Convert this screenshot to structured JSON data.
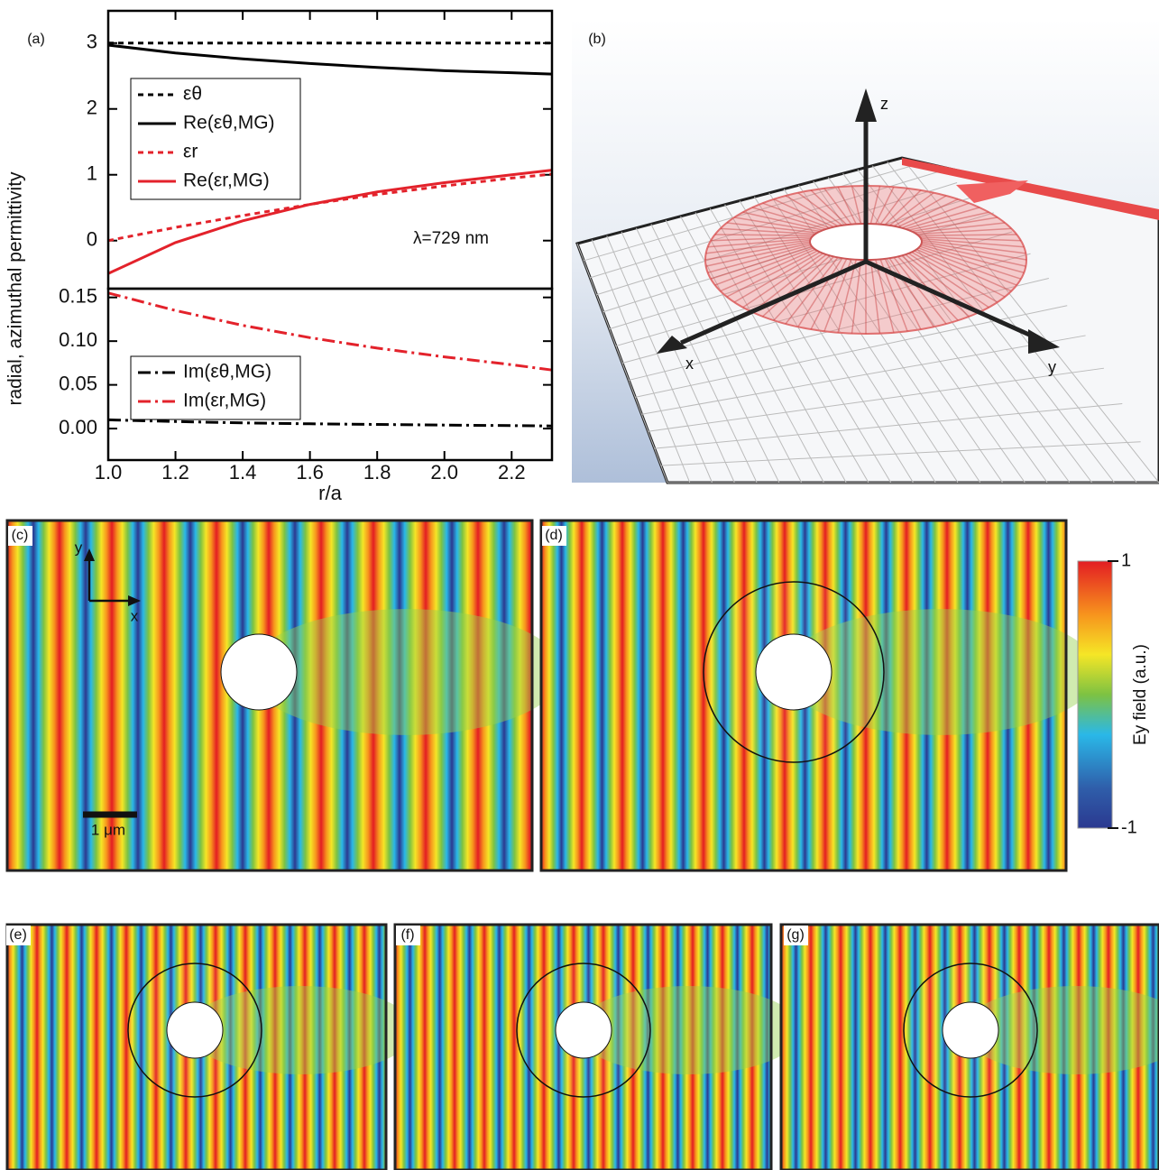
{
  "chart_data": [
    {
      "type": "line",
      "xlim": [
        1.0,
        2.32
      ],
      "ylim": [
        -0.73,
        3.49
      ],
      "yticks": [
        0,
        1,
        2,
        3
      ],
      "annotation": "λ=729 nm",
      "legend": "upper left",
      "x": [
        1.0,
        1.2,
        1.4,
        1.6,
        1.8,
        2.0,
        2.2,
        2.32
      ],
      "series": [
        {
          "name": "εθ",
          "color": "#000000",
          "dash": "dashed",
          "values": [
            3,
            3,
            3,
            3,
            3,
            3,
            3,
            3
          ]
        },
        {
          "name": "Re(εθ,MG)",
          "color": "#000000",
          "dash": "solid",
          "values": [
            2.97,
            2.85,
            2.76,
            2.69,
            2.63,
            2.58,
            2.55,
            2.53
          ]
        },
        {
          "name": "εr",
          "color": "#e3222b",
          "dash": "dashed",
          "values": [
            0,
            0.2,
            0.38,
            0.55,
            0.7,
            0.83,
            0.95,
            1.01
          ]
        },
        {
          "name": "Re(εr,MG)",
          "color": "#e3222b",
          "dash": "solid",
          "values": [
            -0.5,
            -0.03,
            0.3,
            0.55,
            0.74,
            0.88,
            1.0,
            1.07
          ]
        }
      ]
    },
    {
      "type": "line",
      "xlim": [
        1.0,
        2.32
      ],
      "ylim": [
        -0.036,
        0.16
      ],
      "yticks": [
        {
          "value": 0,
          "label": "0.00"
        },
        {
          "value": 0.05,
          "label": "0.05"
        },
        {
          "value": 0.1,
          "label": "0.10"
        },
        {
          "value": 0.15,
          "label": "0.15"
        }
      ],
      "xticks": [
        {
          "value": 1,
          "label": "1.0"
        },
        {
          "value": 1.2,
          "label": "1.2"
        },
        {
          "value": 1.4,
          "label": "1.4"
        },
        {
          "value": 1.6,
          "label": "1.6"
        },
        {
          "value": 1.8,
          "label": "1.8"
        },
        {
          "value": 2,
          "label": "2.0"
        },
        {
          "value": 2.2,
          "label": "2.2"
        }
      ],
      "xlabel": "r/a",
      "legend": "lower left",
      "x": [
        1.0,
        1.2,
        1.4,
        1.6,
        1.8,
        2.0,
        2.2,
        2.32
      ],
      "series": [
        {
          "name": "Im(εθ,MG)",
          "color": "#000000",
          "dash": "dashdot",
          "values": [
            0.01,
            0.008,
            0.0065,
            0.0055,
            0.0047,
            0.004,
            0.0034,
            0.003
          ]
        },
        {
          "name": "Im(εr,MG)",
          "color": "#e3222b",
          "dash": "dashdot",
          "values": [
            0.155,
            0.135,
            0.118,
            0.104,
            0.092,
            0.082,
            0.073,
            0.067
          ]
        }
      ]
    }
  ],
  "figure": {
    "ylabel": "radial, azimuthal permittivity",
    "panel_labels": [
      "(a)",
      "(b)",
      "(c)",
      "(d)",
      "(e)",
      "(f)",
      "(g)"
    ],
    "panel_b": {
      "axis_labels": [
        "x",
        "y",
        "z"
      ]
    },
    "field_maps": {
      "axis_labels": [
        "x",
        "y"
      ],
      "scale_bar": "1 μm",
      "colorbar": {
        "label": "Ey field (a.u.)",
        "ticks": [
          1,
          -1
        ]
      }
    }
  }
}
